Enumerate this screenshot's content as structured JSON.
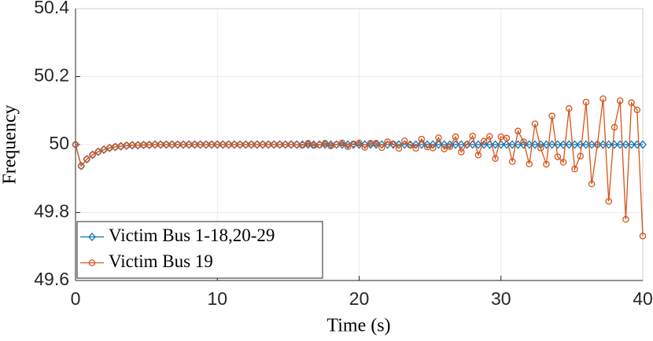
{
  "chart_data": {
    "type": "line",
    "xlabel": "Time (s)",
    "ylabel": "Frequency",
    "xlim": [
      0,
      40
    ],
    "ylim": [
      49.6,
      50.4
    ],
    "xticks": [
      0,
      10,
      20,
      30,
      40
    ],
    "yticks": [
      49.6,
      49.8,
      50,
      50.2,
      50.4
    ],
    "grid": true,
    "legend": "lower left",
    "x": [
      0,
      0.4,
      0.8,
      1.2,
      1.6,
      2,
      2.4,
      2.8,
      3.2,
      3.6,
      4,
      4.4,
      4.8,
      5.2,
      5.6,
      6,
      6.4,
      6.8,
      7.2,
      7.6,
      8,
      8.4,
      8.8,
      9.2,
      9.6,
      10,
      10.4,
      10.8,
      11.2,
      11.6,
      12,
      12.4,
      12.8,
      13.2,
      13.6,
      14,
      14.4,
      14.8,
      15.2,
      15.6,
      16,
      16.4,
      16.8,
      17.2,
      17.6,
      18,
      18.4,
      18.8,
      19.2,
      19.6,
      20,
      20.4,
      20.8,
      21.2,
      21.6,
      22,
      22.4,
      22.8,
      23.2,
      23.6,
      24,
      24.4,
      24.8,
      25.2,
      25.6,
      26,
      26.4,
      26.8,
      27.2,
      27.6,
      28,
      28.4,
      28.8,
      29.2,
      29.6,
      30,
      30.4,
      30.8,
      31.2,
      31.6,
      32,
      32.4,
      32.8,
      33.2,
      33.6,
      34,
      34.4,
      34.8,
      35.2,
      35.6,
      36,
      36.4,
      36.8,
      37.2,
      37.6,
      38,
      38.4,
      38.8,
      39.2,
      39.6,
      40
    ],
    "series": [
      {
        "name": "Victim Bus 1-18,20-29",
        "color": "#0072bd",
        "marker": "diamond",
        "values": [
          50,
          49.937,
          49.957,
          49.97,
          49.979,
          49.985,
          49.99,
          49.993,
          49.995,
          49.997,
          49.998,
          49.998,
          49.999,
          49.999,
          50,
          50,
          50,
          50,
          50,
          50,
          50,
          50,
          50,
          50,
          50,
          50,
          50,
          50,
          50,
          50,
          50,
          50,
          50,
          50,
          50,
          50,
          50,
          50,
          50,
          50,
          50,
          50,
          50,
          50,
          50,
          50,
          50,
          50,
          50,
          50,
          50,
          50,
          50,
          50,
          50,
          50,
          50,
          50,
          50,
          50,
          50,
          50,
          50,
          50,
          50,
          50,
          50,
          50,
          50,
          50,
          50,
          50,
          50,
          50,
          50,
          50,
          50,
          50,
          50,
          50,
          50,
          50,
          50,
          50,
          50,
          50,
          50,
          50,
          50,
          50,
          50,
          50,
          50,
          50,
          50,
          50,
          50,
          50,
          50,
          50,
          50
        ]
      },
      {
        "name": "Victim Bus 19",
        "color": "#d95319",
        "marker": "circle",
        "values": [
          50,
          49.937,
          49.957,
          49.97,
          49.979,
          49.985,
          49.99,
          49.993,
          49.995,
          49.997,
          49.998,
          49.998,
          49.999,
          49.999,
          50,
          50,
          50,
          50,
          50,
          50,
          50,
          50,
          50,
          50,
          50,
          50,
          50,
          50,
          50,
          50,
          50,
          50,
          50,
          50,
          50,
          50,
          50,
          50,
          50,
          50,
          49.998,
          50.004,
          49.997,
          49.999,
          50.004,
          49.996,
          50,
          50.005,
          49.994,
          50.002,
          50.005,
          49.992,
          50.004,
          50.004,
          49.991,
          50.008,
          50.002,
          49.989,
          50.011,
          49.998,
          49.989,
          50.016,
          49.993,
          49.99,
          50.02,
          49.987,
          49.994,
          50.023,
          49.978,
          50,
          50.025,
          49.969,
          50.01,
          50.024,
          49.959,
          50.023,
          50.019,
          49.95,
          50.04,
          50.008,
          49.943,
          50.061,
          49.99,
          49.942,
          50.084,
          49.964,
          49.948,
          50.106,
          49.928,
          49.966,
          50.125,
          49.884,
          50,
          50.135,
          49.833,
          50.051,
          50.129,
          49.78,
          50.123,
          50.102,
          49.731
        ]
      }
    ]
  }
}
